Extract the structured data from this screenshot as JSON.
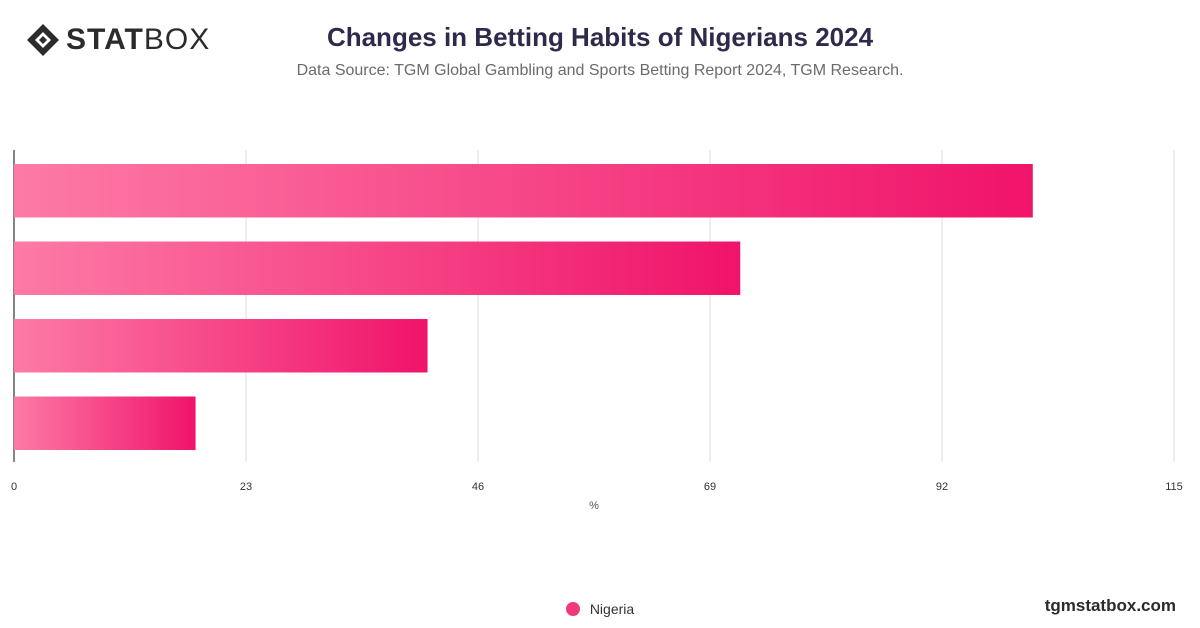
{
  "header": {
    "logo_text_bold": "STAT",
    "logo_text_light": "BOX",
    "title": "Changes in Betting Habits of Nigerians 2024",
    "subtitle": "Data Source: TGM Global Gambling and Sports Betting Report 2024, TGM Research."
  },
  "footer": {
    "watermark": "tgmstatbox.com"
  },
  "colors": {
    "bar_start": "#fd7aa6",
    "bar_end": "#f0136a",
    "legend_dot": "#ee3a7a",
    "grid": "#dddddd",
    "axis": "#333333"
  },
  "chart_data": {
    "type": "bar",
    "orientation": "horizontal",
    "categories": [
      "",
      "",
      "",
      ""
    ],
    "series": [
      {
        "name": "Nigeria",
        "values": [
          101,
          72,
          41,
          18
        ]
      }
    ],
    "xlabel": "%",
    "ylabel": "",
    "xlim": [
      0,
      115
    ],
    "x_ticks": [
      0,
      23,
      46,
      69,
      92,
      115
    ],
    "grid": true,
    "legend": "bottom-center"
  }
}
